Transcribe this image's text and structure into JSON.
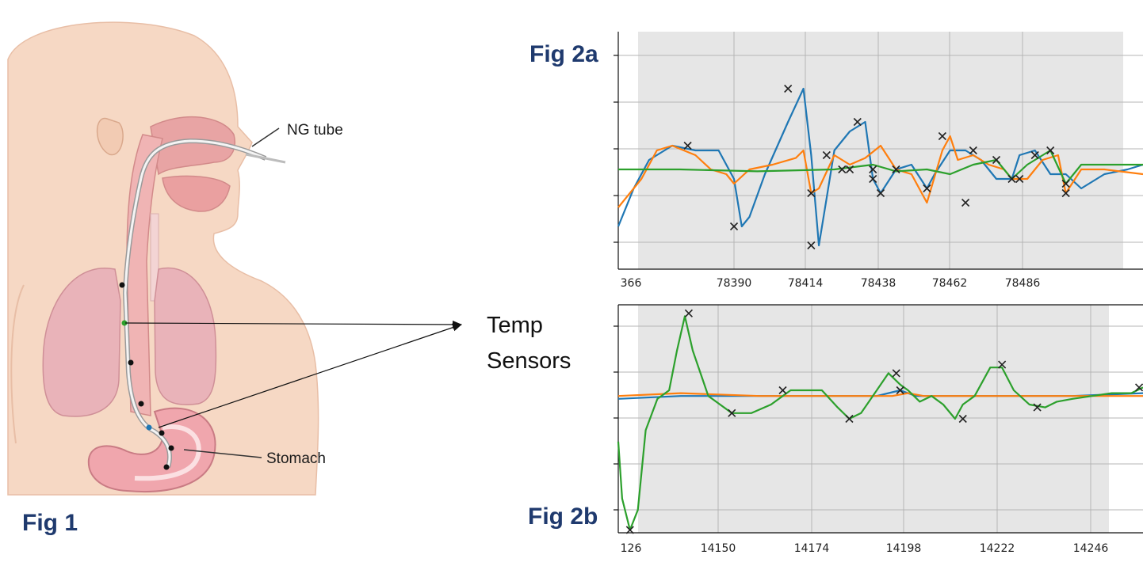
{
  "fig1": {
    "label": "Fig 1",
    "callouts": [
      "NG tube",
      "Stomach"
    ]
  },
  "sensors_label": {
    "line1": "Temp",
    "line2": "Sensors"
  },
  "chart_data": [
    {
      "type": "line",
      "title": "Fig 2a",
      "x_ticks": [
        "366",
        "78390",
        "78414",
        "78438",
        "78462",
        "78486"
      ],
      "xlim": [
        78364,
        78500
      ],
      "ylim": [
        -1.05,
        1.45
      ],
      "grid": true,
      "series": [
        {
          "color": "#1f77b4",
          "x": [
            78364,
            78368,
            78372,
            78378,
            78384,
            78390,
            78394,
            78396,
            78398,
            78402,
            78408,
            78412,
            78414,
            78416,
            78418,
            78420,
            78424,
            78428,
            78430,
            78432,
            78436,
            78440,
            78444,
            78446,
            78450,
            78454,
            78458,
            78462,
            78466,
            78468,
            78472,
            78476,
            78480,
            78484,
            78490,
            78496,
            78500
          ],
          "y": [
            -0.6,
            -0.2,
            0.1,
            0.25,
            0.2,
            0.2,
            -0.1,
            -0.6,
            -0.5,
            -0.05,
            0.5,
            0.85,
            0.15,
            -0.8,
            -0.3,
            0.2,
            0.4,
            0.5,
            -0.1,
            -0.25,
            0.0,
            0.05,
            -0.2,
            -0.05,
            0.2,
            0.2,
            0.1,
            -0.1,
            -0.1,
            0.15,
            0.2,
            -0.05,
            -0.05,
            -0.2,
            -0.05,
            0.0,
            0.05
          ]
        },
        {
          "color": "#ff7f0e",
          "x": [
            78364,
            78370,
            78374,
            78378,
            78384,
            78388,
            78392,
            78394,
            78398,
            78404,
            78410,
            78412,
            78414,
            78416,
            78420,
            78424,
            78428,
            78432,
            78436,
            78440,
            78444,
            78448,
            78450,
            78452,
            78456,
            78460,
            78464,
            78466,
            78470,
            78474,
            78478,
            78480,
            78484,
            78490,
            78500
          ],
          "y": [
            -0.4,
            -0.1,
            0.2,
            0.25,
            0.15,
            0.0,
            -0.05,
            -0.15,
            0.0,
            0.05,
            0.12,
            0.2,
            -0.25,
            -0.2,
            0.15,
            0.05,
            0.12,
            0.25,
            0.0,
            -0.05,
            -0.35,
            0.2,
            0.35,
            0.1,
            0.15,
            0.05,
            0.0,
            -0.1,
            -0.1,
            0.1,
            0.15,
            -0.25,
            0.0,
            0.0,
            -0.05
          ]
        },
        {
          "color": "#2ca02c",
          "x": [
            78364,
            78380,
            78400,
            78420,
            78430,
            78436,
            78444,
            78450,
            78456,
            78462,
            78466,
            78470,
            78476,
            78480,
            78484,
            78490,
            78500
          ],
          "y": [
            0.0,
            0.0,
            -0.02,
            0.0,
            0.05,
            -0.02,
            0.0,
            -0.05,
            0.05,
            0.1,
            -0.1,
            0.05,
            0.2,
            -0.15,
            0.05,
            0.05,
            0.05
          ]
        }
      ],
      "markers": {
        "x": [
          78382,
          78394,
          78408,
          78414,
          78418,
          78422,
          78426,
          78430,
          78432,
          78436,
          78444,
          78448,
          78454,
          78456,
          78462,
          78466,
          78468,
          78472,
          78476,
          78480,
          78480,
          78414,
          78424,
          78430
        ],
        "y": [
          0.25,
          -0.6,
          0.85,
          -0.8,
          0.15,
          0.0,
          0.5,
          -0.1,
          -0.25,
          0.0,
          -0.2,
          0.35,
          -0.35,
          0.2,
          0.1,
          -0.1,
          -0.1,
          0.15,
          0.2,
          -0.15,
          -0.25,
          -0.25,
          0.0,
          0.0
        ]
      }
    },
    {
      "type": "line",
      "title": "Fig 2b",
      "x_ticks": [
        "126",
        "14150",
        "14174",
        "14198",
        "14222",
        "14246"
      ],
      "xlim": [
        14124,
        14258
      ],
      "ylim": [
        -2.4,
        1.6
      ],
      "grid": true,
      "series": [
        {
          "color": "#1f77b4",
          "x": [
            14124,
            14140,
            14160,
            14180,
            14190,
            14196,
            14200,
            14220,
            14240,
            14258
          ],
          "y": [
            -0.05,
            0.0,
            0.0,
            0.0,
            0.0,
            0.1,
            0.0,
            0.0,
            0.0,
            0.05
          ]
        },
        {
          "color": "#ff7f0e",
          "x": [
            14124,
            14140,
            14160,
            14180,
            14194,
            14198,
            14202,
            14220,
            14240,
            14258
          ],
          "y": [
            0.0,
            0.05,
            0.0,
            0.0,
            0.0,
            0.05,
            0.0,
            0.0,
            0.0,
            0.0
          ]
        },
        {
          "color": "#2ca02c",
          "x": [
            14124,
            14125,
            14127,
            14129,
            14131,
            14134,
            14137,
            14139,
            14141,
            14143,
            14147,
            14153,
            14158,
            14163,
            14168,
            14172,
            14176,
            14180,
            14183,
            14186,
            14190,
            14193,
            14196,
            14198,
            14201,
            14204,
            14207,
            14210,
            14212,
            14215,
            14219,
            14222,
            14225,
            14229,
            14233,
            14236,
            14240,
            14245,
            14250,
            14255,
            14258
          ],
          "y": [
            -0.8,
            -1.8,
            -2.35,
            -2.0,
            -0.6,
            -0.05,
            0.1,
            0.8,
            1.4,
            0.8,
            0.0,
            -0.3,
            -0.3,
            -0.15,
            0.1,
            0.1,
            0.1,
            -0.2,
            -0.4,
            -0.3,
            0.1,
            0.4,
            0.2,
            0.1,
            -0.1,
            0.0,
            -0.15,
            -0.4,
            -0.15,
            0.0,
            0.5,
            0.5,
            0.1,
            -0.15,
            -0.2,
            -0.1,
            -0.05,
            0.0,
            0.05,
            0.05,
            0.15
          ]
        }
      ],
      "markers": {
        "x": [
          14127,
          14142,
          14153,
          14166,
          14183,
          14195,
          14196,
          14212,
          14222,
          14231,
          14257
        ],
        "y": [
          -2.35,
          1.45,
          -0.3,
          0.1,
          -0.4,
          0.4,
          0.1,
          -0.4,
          0.55,
          -0.2,
          0.15
        ]
      }
    }
  ]
}
